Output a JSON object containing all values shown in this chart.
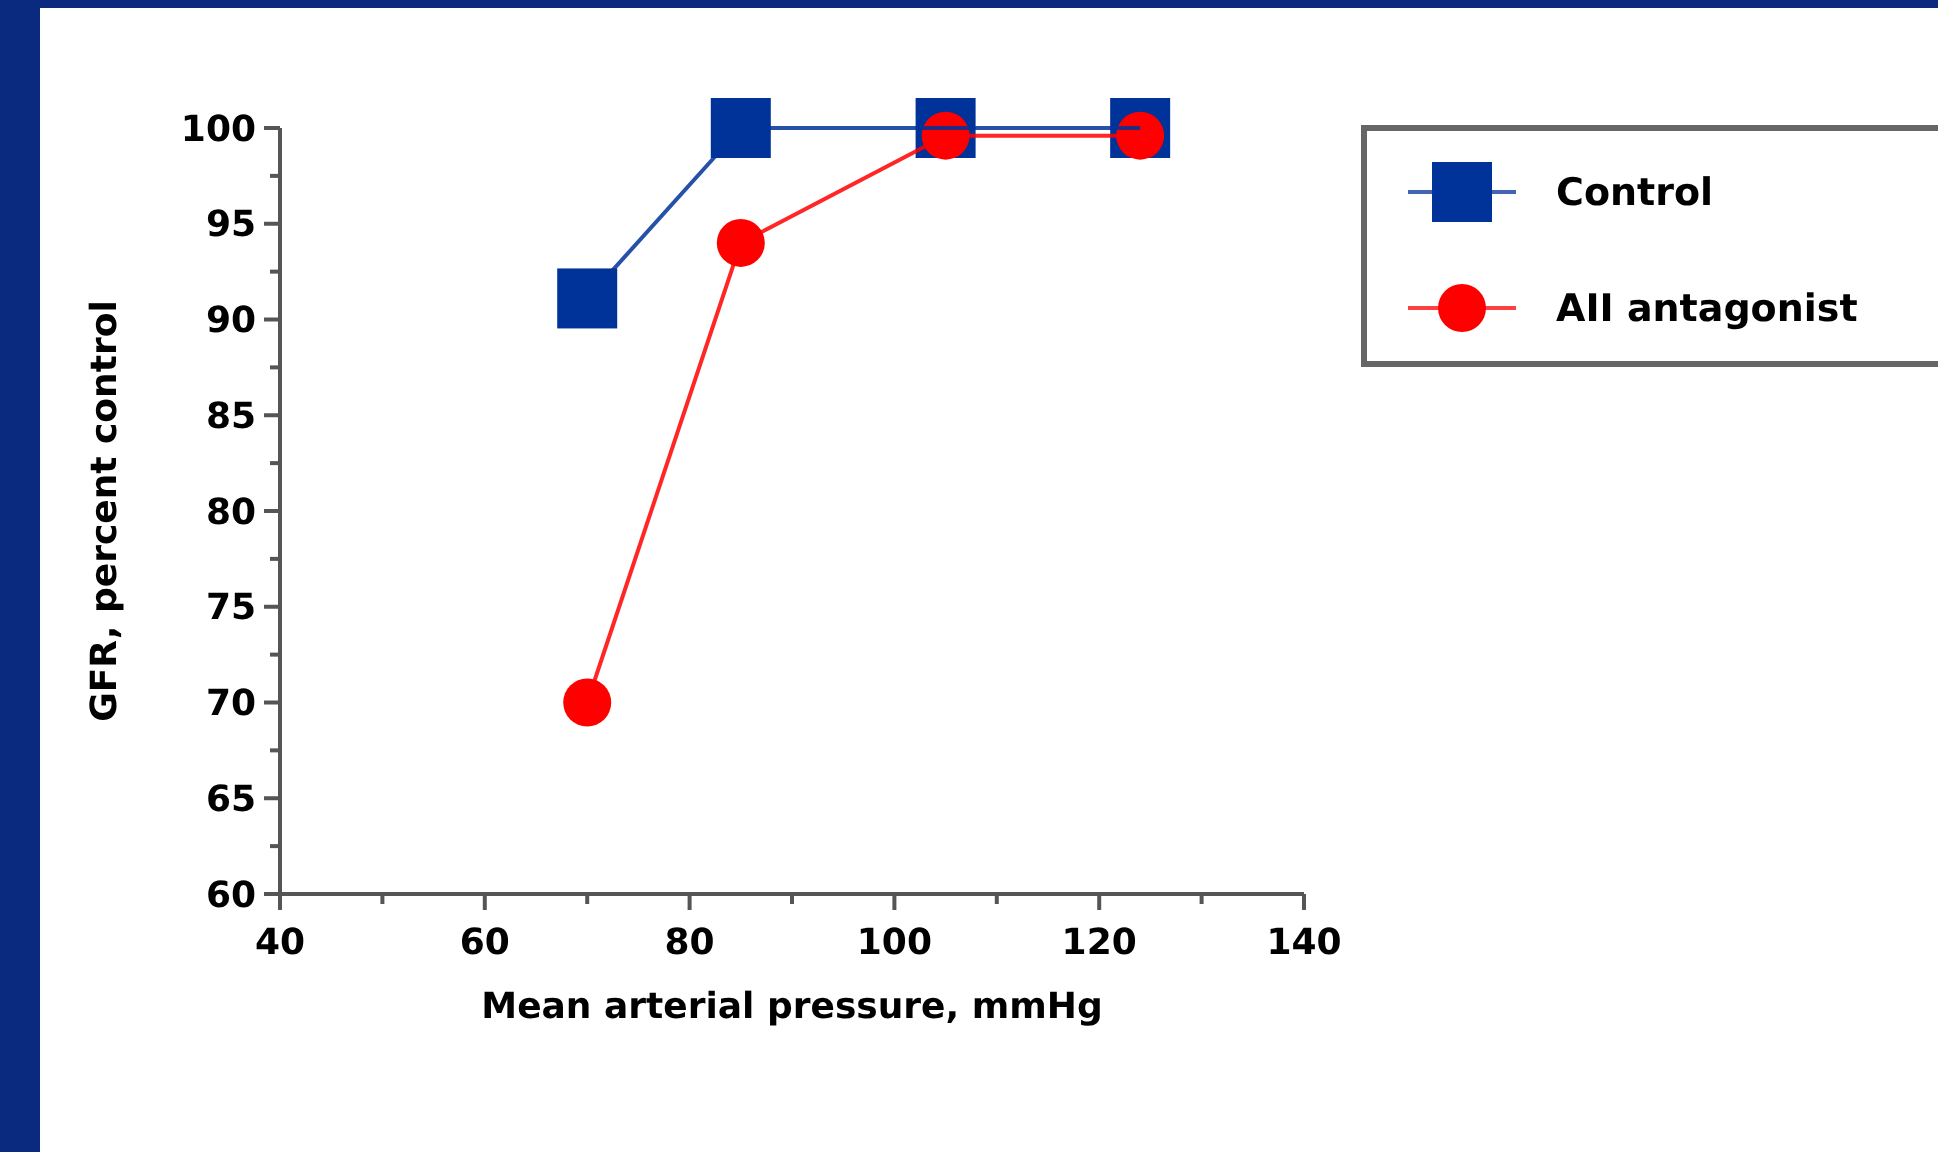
{
  "chart_data": {
    "type": "line",
    "xlabel": "Mean arterial pressure, mmHg",
    "ylabel": "GFR, percent control",
    "xlim": [
      40,
      140
    ],
    "xticks": [
      40,
      60,
      80,
      100,
      120,
      140
    ],
    "ylim": [
      60,
      100
    ],
    "yticks": [
      60,
      65,
      70,
      75,
      80,
      85,
      90,
      95,
      100
    ],
    "grid": false,
    "legend": "top right",
    "line_style": "solid",
    "series": [
      {
        "name": "Control",
        "color": "#003399",
        "marker": "square",
        "x": [
          70,
          85,
          105,
          124
        ],
        "values": [
          91.1,
          100,
          100,
          100
        ]
      },
      {
        "name": "AII antagonist",
        "color": "#ff0000",
        "marker": "circle",
        "x": [
          70,
          85,
          105,
          124
        ],
        "values": [
          70,
          94,
          99.6,
          99.6
        ]
      }
    ]
  }
}
